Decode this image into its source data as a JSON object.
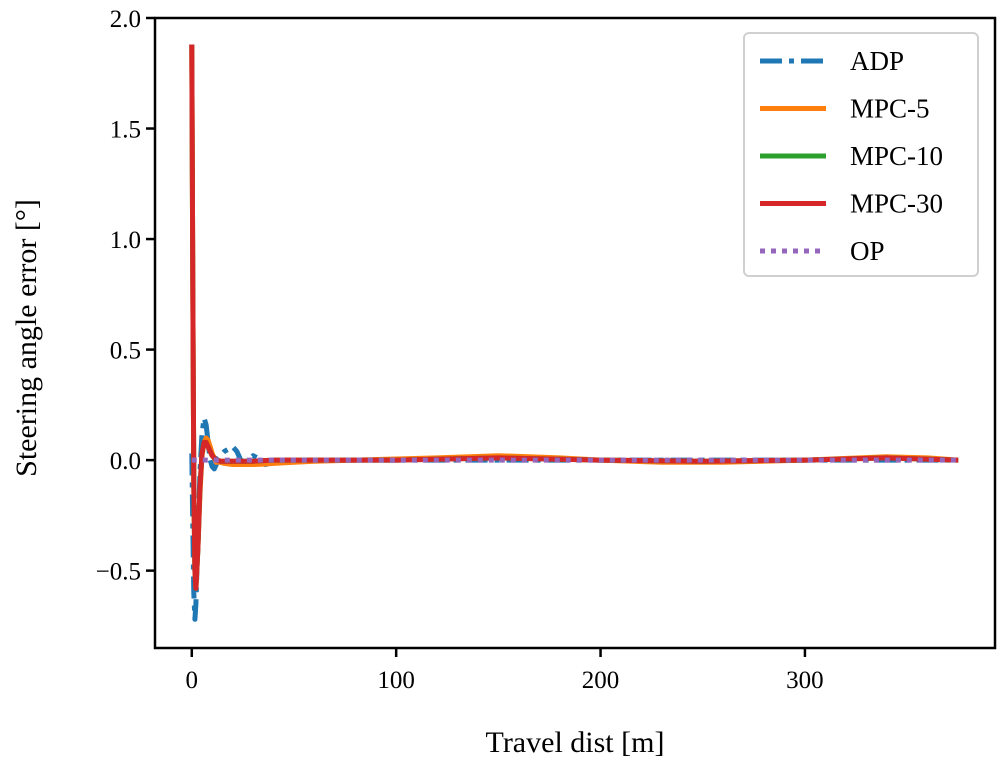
{
  "chart_data": {
    "type": "line",
    "title": "",
    "xlabel": "Travel dist [m]",
    "ylabel": "Steering angle error [°]",
    "xlim": [
      -18,
      393
    ],
    "ylim": [
      -0.85,
      2.0
    ],
    "x_ticks": [
      0,
      100,
      200,
      300
    ],
    "y_ticks": [
      -0.5,
      0.0,
      0.5,
      1.0,
      1.5,
      2.0
    ],
    "x_tick_labels": [
      "0",
      "100",
      "200",
      "300"
    ],
    "y_tick_labels": [
      "−0.5",
      "0.0",
      "0.5",
      "1.0",
      "1.5",
      "2.0"
    ],
    "grid": false,
    "legend_position": "top-right",
    "series": [
      {
        "name": "ADP",
        "color": "#1f77b4",
        "style": "dashdot",
        "x": [
          0,
          0.5,
          1,
          1.5,
          2,
          3,
          4,
          5,
          6,
          7,
          8,
          9,
          10,
          11,
          12,
          13,
          14,
          15,
          16,
          18,
          20,
          22,
          24,
          26,
          28,
          30,
          32,
          34,
          36,
          40,
          45,
          50,
          55,
          60,
          70,
          80,
          100,
          150,
          200,
          250,
          300,
          350,
          375
        ],
        "y": [
          0.03,
          -0.3,
          -0.6,
          -0.72,
          -0.65,
          -0.35,
          -0.05,
          0.12,
          0.19,
          0.16,
          0.08,
          0.0,
          -0.03,
          -0.04,
          -0.02,
          0.01,
          0.02,
          0.03,
          0.04,
          0.05,
          0.06,
          0.04,
          0.0,
          -0.01,
          0.0,
          0.02,
          0.01,
          -0.01,
          -0.02,
          -0.01,
          0.0,
          0.0,
          0.0,
          0.0,
          0.0,
          0.0,
          0.0,
          0.0,
          0.0,
          0.0,
          0.0,
          0.0,
          0.0
        ]
      },
      {
        "name": "MPC-5",
        "color": "#ff7f0e",
        "style": "solid",
        "x": [
          0,
          0.5,
          1,
          1.5,
          2,
          3,
          4,
          5,
          6,
          7,
          8,
          9,
          10,
          12,
          14,
          16,
          20,
          25,
          30,
          35,
          40,
          50,
          60,
          80,
          100,
          120,
          150,
          180,
          200,
          230,
          260,
          300,
          340,
          360,
          375
        ],
        "y": [
          1.88,
          0.8,
          -0.1,
          -0.5,
          -0.58,
          -0.4,
          -0.15,
          0.02,
          0.08,
          0.1,
          0.09,
          0.06,
          0.03,
          -0.01,
          -0.01,
          -0.015,
          -0.02,
          -0.02,
          -0.02,
          -0.018,
          -0.015,
          -0.01,
          -0.005,
          0.0,
          0.005,
          0.01,
          0.02,
          0.01,
          0.0,
          -0.01,
          -0.01,
          0.0,
          0.015,
          0.01,
          0.0
        ]
      },
      {
        "name": "MPC-10",
        "color": "#2ca02c",
        "style": "solid",
        "x": [
          0,
          0.5,
          1,
          1.5,
          2,
          3,
          4,
          5,
          6,
          7,
          8,
          9,
          10,
          12,
          14,
          16,
          20,
          25,
          30,
          40,
          50,
          60,
          80,
          100,
          150,
          200,
          250,
          300,
          340,
          375
        ],
        "y": [
          1.88,
          0.8,
          -0.1,
          -0.5,
          -0.58,
          -0.4,
          -0.12,
          0.03,
          0.08,
          0.08,
          0.06,
          0.04,
          0.02,
          0.0,
          -0.005,
          -0.005,
          -0.005,
          -0.005,
          -0.005,
          0.0,
          0.0,
          0.0,
          0.0,
          0.0,
          0.01,
          0.0,
          -0.005,
          0.0,
          0.01,
          0.0
        ]
      },
      {
        "name": "MPC-30",
        "color": "#d62728",
        "style": "solid",
        "x": [
          0,
          0.5,
          1,
          1.5,
          2,
          3,
          4,
          5,
          6,
          7,
          8,
          9,
          10,
          12,
          14,
          16,
          20,
          25,
          30,
          40,
          50,
          60,
          80,
          100,
          150,
          200,
          250,
          300,
          340,
          375
        ],
        "y": [
          1.88,
          0.8,
          -0.1,
          -0.5,
          -0.58,
          -0.4,
          -0.12,
          0.03,
          0.08,
          0.08,
          0.06,
          0.04,
          0.02,
          0.0,
          -0.005,
          -0.005,
          -0.005,
          -0.005,
          -0.005,
          0.0,
          0.0,
          0.0,
          0.0,
          0.0,
          0.01,
          0.0,
          -0.005,
          0.0,
          0.01,
          0.0
        ]
      },
      {
        "name": "OP",
        "color": "#9467bd",
        "style": "dotted",
        "x": [
          0,
          50,
          100,
          150,
          200,
          250,
          300,
          350,
          375
        ],
        "y": [
          0.0,
          0.0,
          0.0,
          0.0,
          0.0,
          0.0,
          0.0,
          0.0,
          0.0
        ]
      }
    ]
  }
}
